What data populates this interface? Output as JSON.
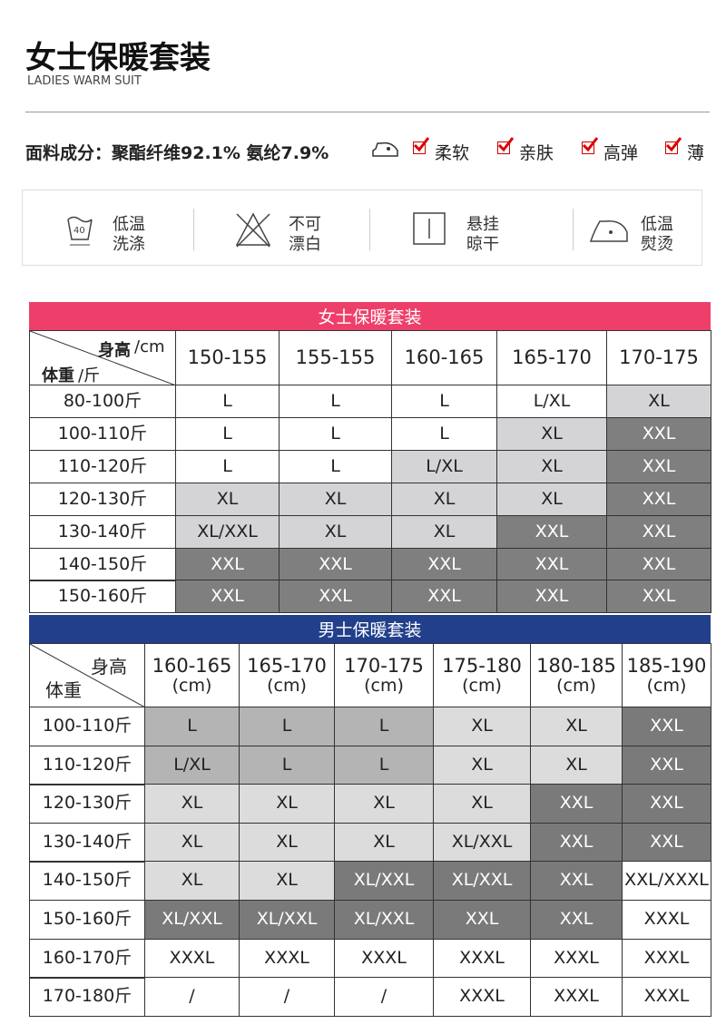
{
  "header": {
    "title": "女士保暖套装",
    "subtitle": "LADIES WARM SUIT"
  },
  "material": {
    "text": "面料成分：聚酯纤维92.1% 氨纶7.9%",
    "features": [
      "柔软",
      "亲肤",
      "高弹",
      "薄"
    ]
  },
  "care": [
    {
      "lines": [
        "低温",
        "洗涤"
      ]
    },
    {
      "lines": [
        "不可",
        "漂白"
      ]
    },
    {
      "lines": [
        "悬挂",
        "晾干"
      ]
    },
    {
      "lines": [
        "低温",
        "熨烫"
      ]
    }
  ],
  "table1": {
    "title": "女士保暖套装",
    "title_color": "#ee3f6a",
    "corner": {
      "top": "身高",
      "top_unit": "/cm",
      "bottom": "体重",
      "bottom_unit": "/斤"
    },
    "columns": [
      "150-155",
      "155-155",
      "160-165",
      "165-170",
      "170-175"
    ],
    "rows": [
      {
        "label": "80-100斤",
        "cells": [
          "L",
          "L",
          "L",
          "L/XL",
          "XL"
        ],
        "fills": [
          "#ffffff",
          "#ffffff",
          "#ffffff",
          "#ffffff",
          "#d4d4d6"
        ]
      },
      {
        "label": "100-110斤",
        "cells": [
          "L",
          "L",
          "L",
          "XL",
          "XXL"
        ],
        "fills": [
          "#ffffff",
          "#ffffff",
          "#ffffff",
          "#d4d4d6",
          "#7f7f7f"
        ]
      },
      {
        "label": "110-120斤",
        "cells": [
          "L",
          "L",
          "L/XL",
          "XL",
          "XXL"
        ],
        "fills": [
          "#ffffff",
          "#ffffff",
          "#d4d4d6",
          "#d4d4d6",
          "#7f7f7f"
        ]
      },
      {
        "label": "120-130斤",
        "cells": [
          "XL",
          "XL",
          "XL",
          "XL",
          "XXL"
        ],
        "fills": [
          "#d4d4d6",
          "#d4d4d6",
          "#d4d4d6",
          "#d4d4d6",
          "#7f7f7f"
        ]
      },
      {
        "label": "130-140斤",
        "cells": [
          "XL/XXL",
          "XL",
          "XL",
          "XXL",
          "XXL"
        ],
        "fills": [
          "#d4d4d6",
          "#d4d4d6",
          "#d4d4d6",
          "#7f7f7f",
          "#7f7f7f"
        ]
      },
      {
        "label": "140-150斤",
        "cells": [
          "XXL",
          "XXL",
          "XXL",
          "XXL",
          "XXL"
        ],
        "fills": [
          "#7f7f7f",
          "#7f7f7f",
          "#7f7f7f",
          "#7f7f7f",
          "#7f7f7f"
        ]
      },
      {
        "label": "150-160斤",
        "cells": [
          "XXL",
          "XXL",
          "XXL",
          "XXL",
          "XXL"
        ],
        "fills": [
          "#7f7f7f",
          "#7f7f7f",
          "#7f7f7f",
          "#7f7f7f",
          "#7f7f7f"
        ]
      }
    ]
  },
  "table2": {
    "title": "男士保暖套装",
    "title_color": "#213f8a",
    "corner": {
      "top": "身高",
      "bottom": "体重"
    },
    "columns": [
      {
        "range": "160-165",
        "unit": "(cm)"
      },
      {
        "range": "165-170",
        "unit": "(cm)"
      },
      {
        "range": "170-175",
        "unit": "(cm)"
      },
      {
        "range": "175-180",
        "unit": "(cm)"
      },
      {
        "range": "180-185",
        "unit": "(cm)"
      },
      {
        "range": "185-190",
        "unit": "(cm)"
      }
    ],
    "rows": [
      {
        "label": "100-110斤",
        "cells": [
          "L",
          "L",
          "L",
          "XL",
          "XL",
          "XXL"
        ],
        "fills": [
          "#b4b4b4",
          "#b4b4b4",
          "#b4b4b4",
          "#dcdcdc",
          "#dcdcdc",
          "#7a7a7a"
        ]
      },
      {
        "label": "110-120斤",
        "cells": [
          "L/XL",
          "L",
          "L",
          "XL",
          "XL",
          "XXL"
        ],
        "fills": [
          "#b4b4b4",
          "#b4b4b4",
          "#b4b4b4",
          "#dcdcdc",
          "#dcdcdc",
          "#7a7a7a"
        ]
      },
      {
        "label": "120-130斤",
        "cells": [
          "XL",
          "XL",
          "XL",
          "XL",
          "XXL",
          "XXL"
        ],
        "fills": [
          "#dcdcdc",
          "#dcdcdc",
          "#dcdcdc",
          "#dcdcdc",
          "#7a7a7a",
          "#7a7a7a"
        ]
      },
      {
        "label": "130-140斤",
        "cells": [
          "XL",
          "XL",
          "XL",
          "XL/XXL",
          "XXL",
          "XXL"
        ],
        "fills": [
          "#dcdcdc",
          "#dcdcdc",
          "#dcdcdc",
          "#dcdcdc",
          "#7a7a7a",
          "#7a7a7a"
        ]
      },
      {
        "label": "140-150斤",
        "cells": [
          "XL",
          "XL",
          "XL/XXL",
          "XL/XXL",
          "XXL",
          "XXL/XXXL"
        ],
        "fills": [
          "#dcdcdc",
          "#dcdcdc",
          "#7a7a7a",
          "#7a7a7a",
          "#7a7a7a",
          "#ffffff"
        ]
      },
      {
        "label": "150-160斤",
        "cells": [
          "XL/XXL",
          "XL/XXL",
          "XL/XXL",
          "XXL",
          "XXL",
          "XXXL"
        ],
        "fills": [
          "#7a7a7a",
          "#7a7a7a",
          "#7a7a7a",
          "#7a7a7a",
          "#7a7a7a",
          "#ffffff"
        ]
      },
      {
        "label": "160-170斤",
        "cells": [
          "XXXL",
          "XXXL",
          "XXXL",
          "XXXL",
          "XXXL",
          "XXXL"
        ],
        "fills": [
          "#ffffff",
          "#ffffff",
          "#ffffff",
          "#ffffff",
          "#ffffff",
          "#ffffff"
        ]
      },
      {
        "label": "170-180斤",
        "cells": [
          "/",
          "/",
          "/",
          "XXXL",
          "XXXL",
          "XXXL"
        ],
        "fills": [
          "#ffffff",
          "#ffffff",
          "#ffffff",
          "#ffffff",
          "#ffffff",
          "#ffffff"
        ]
      }
    ]
  }
}
